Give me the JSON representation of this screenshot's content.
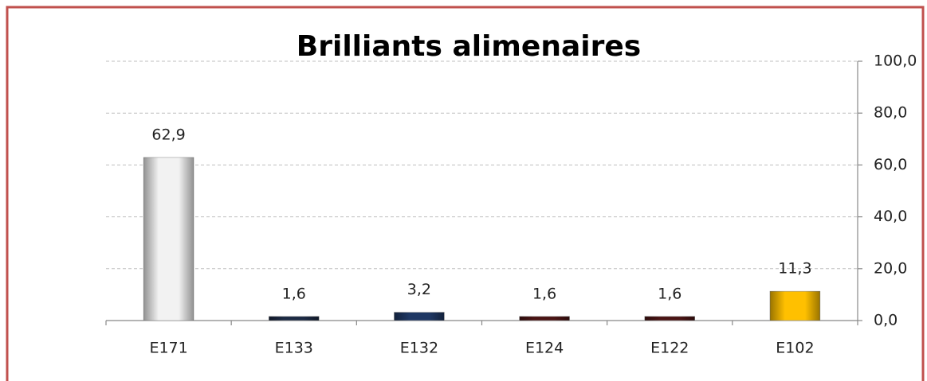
{
  "chart_data": {
    "type": "bar",
    "title": "Brilliants alimenaires",
    "categories": [
      "E171",
      "E133",
      "E132",
      "E124",
      "E122",
      "E102"
    ],
    "values": [
      62.9,
      1.6,
      3.2,
      1.6,
      1.6,
      11.3
    ],
    "value_labels": [
      "62,9",
      "1,6",
      "3,2",
      "1,6",
      "1,6",
      "11,3"
    ],
    "colors": [
      "#f2f2f2",
      "#1c2a44",
      "#1f3864",
      "#4a1414",
      "#4a1414",
      "#ffc000"
    ],
    "ylim": [
      0,
      100
    ],
    "yticks": [
      {
        "value": 0,
        "label": "0,0"
      },
      {
        "value": 20,
        "label": "20,0"
      },
      {
        "value": 40,
        "label": "40,0"
      },
      {
        "value": 60,
        "label": "60,0"
      },
      {
        "value": 80,
        "label": "80,0"
      },
      {
        "value": 100,
        "label": "100,0"
      }
    ],
    "grid": true,
    "y_axis_side": "right"
  }
}
